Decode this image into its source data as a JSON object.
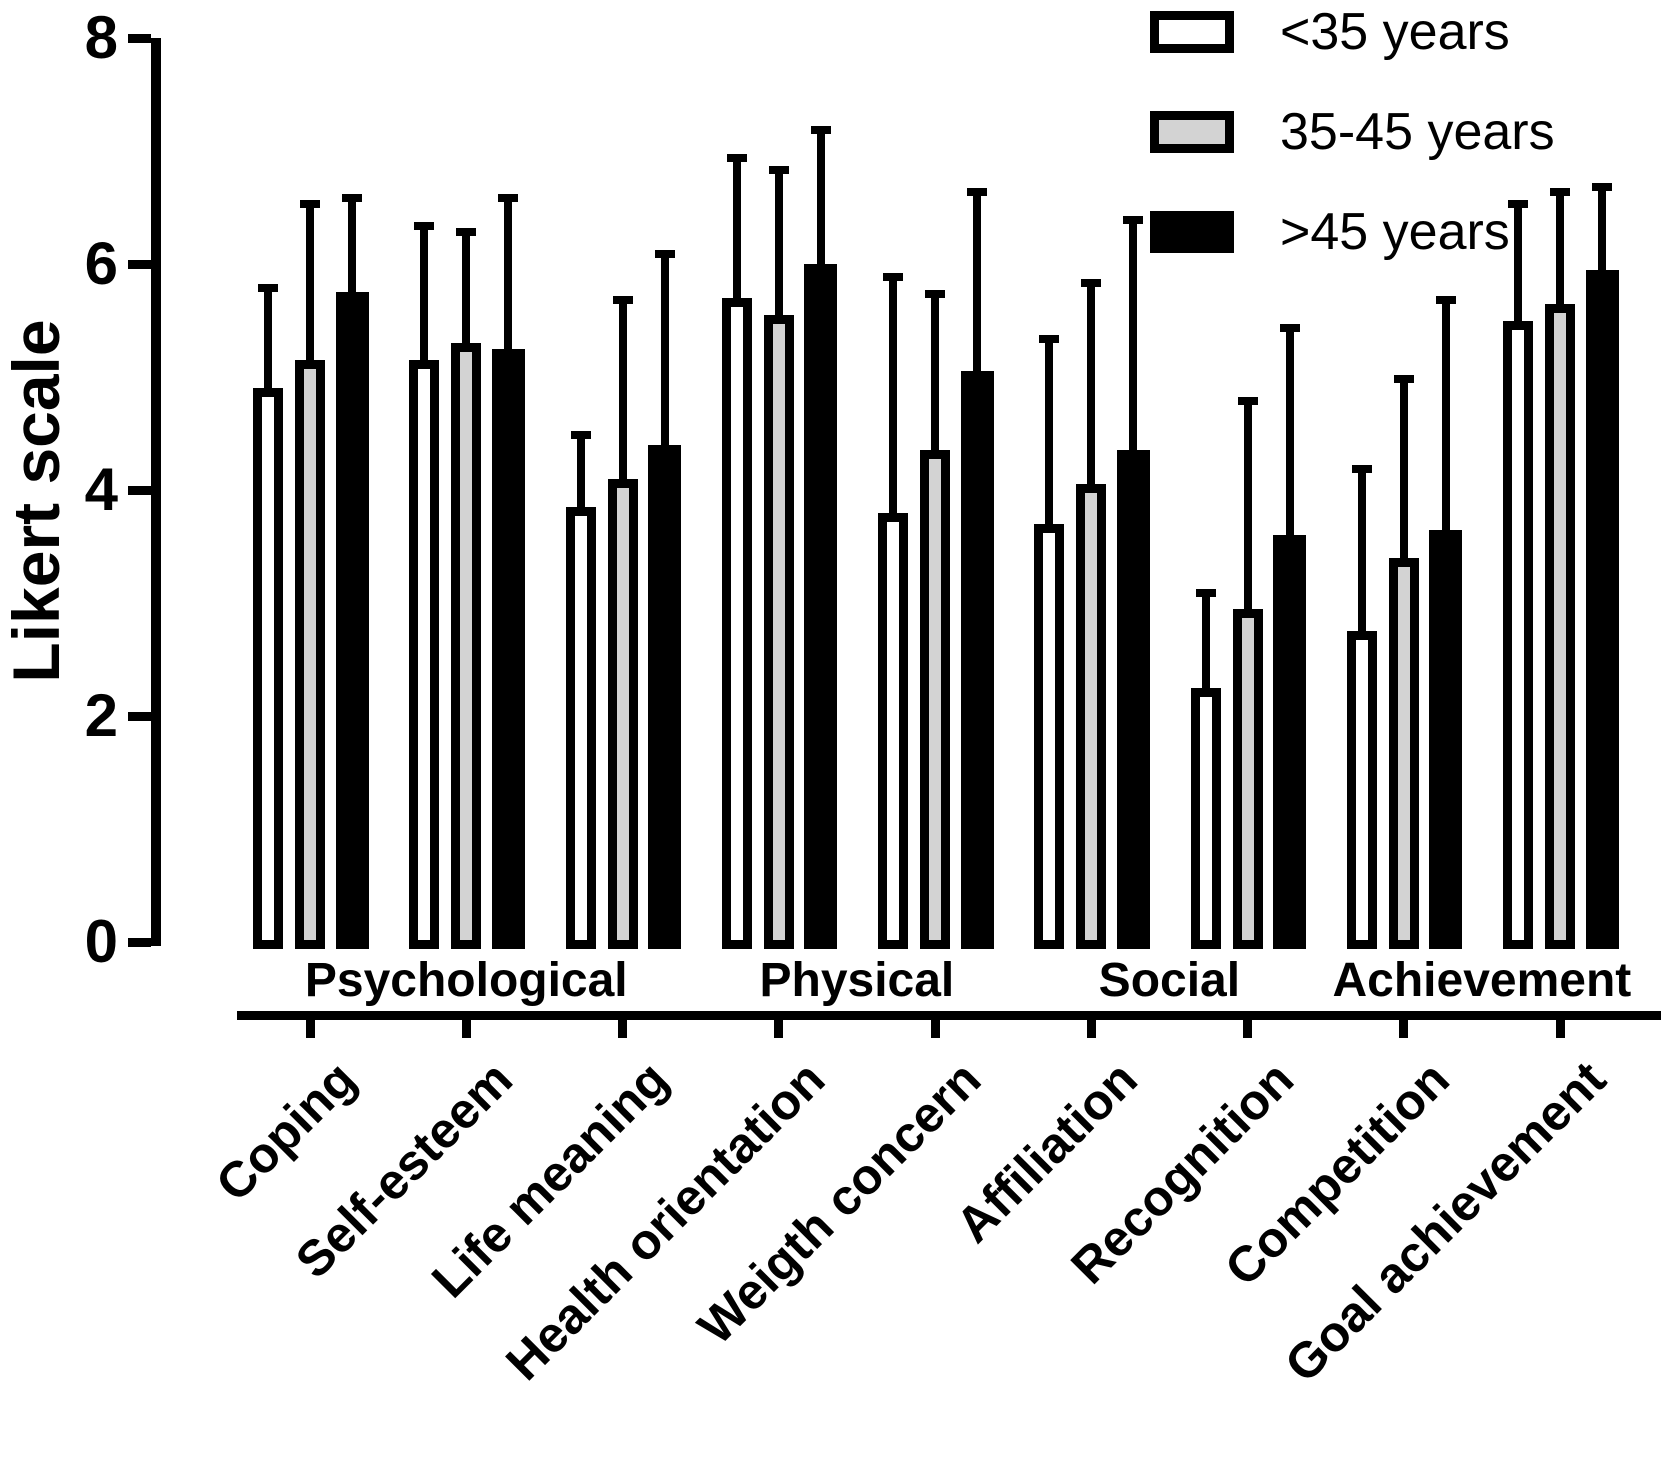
{
  "chart_data": {
    "type": "bar",
    "title": "",
    "ylabel": "Likert scale",
    "xlabel": "",
    "ylim": [
      0,
      8
    ],
    "yticks": [
      0,
      2,
      4,
      6,
      8
    ],
    "grid": false,
    "legend_position": "top-right",
    "error_bar_direction": "upper",
    "background": "#ffffff",
    "axis_color": "#000000",
    "categories": [
      "Coping",
      "Self-esteem",
      "Life meaning",
      "Health orientation",
      "Weigth concern",
      "Affiliation",
      "Recognition",
      "Competition",
      "Goal achievement"
    ],
    "category_groups": [
      {
        "label": "Psychological",
        "span": [
          0,
          2
        ]
      },
      {
        "label": "Physical",
        "span": [
          3,
          4
        ]
      },
      {
        "label": "Social",
        "span": [
          5,
          6
        ]
      },
      {
        "label": "Achievement",
        "span": [
          7,
          8
        ]
      }
    ],
    "series": [
      {
        "name": "<35 years",
        "fill": "#ffffff",
        "values": [
          4.9,
          5.15,
          3.85,
          5.7,
          3.8,
          3.7,
          2.25,
          2.75,
          5.5
        ],
        "error_tops": [
          5.75,
          6.3,
          4.45,
          6.9,
          5.85,
          5.3,
          3.05,
          4.15,
          6.5
        ]
      },
      {
        "name": "35-45 years",
        "fill": "#d3d3d3",
        "values": [
          5.15,
          5.3,
          4.1,
          5.55,
          4.35,
          4.05,
          2.95,
          3.4,
          5.65
        ],
        "error_tops": [
          6.5,
          6.25,
          5.65,
          6.8,
          5.7,
          5.8,
          4.75,
          4.95,
          6.6
        ]
      },
      {
        "name": ">45 years",
        "fill": "#000000",
        "values": [
          5.75,
          5.25,
          4.4,
          6.0,
          5.05,
          4.35,
          3.6,
          3.65,
          5.95
        ],
        "error_tops": [
          6.55,
          6.55,
          6.05,
          7.15,
          6.6,
          6.35,
          5.4,
          5.65,
          6.65
        ]
      }
    ]
  }
}
